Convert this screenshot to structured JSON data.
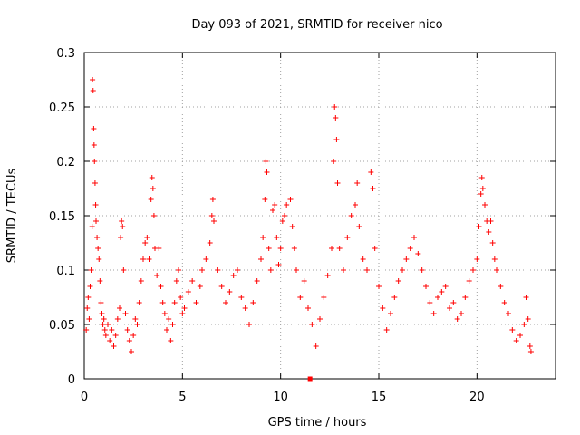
{
  "chart_data": {
    "type": "scatter",
    "title": "Day 093 of 2021, SRMTID for receiver nico",
    "xlabel": "GPS time / hours",
    "ylabel": "SRMTID / TECUs",
    "xlim": [
      0,
      24
    ],
    "ylim": [
      0,
      0.3
    ],
    "x_ticks": [
      0,
      5,
      10,
      15,
      20
    ],
    "y_ticks": [
      0,
      0.05,
      0.1,
      0.15,
      0.2,
      0.25,
      0.3
    ],
    "x_tick_labels": [
      "0",
      "5",
      "10",
      "15",
      "20"
    ],
    "y_tick_labels": [
      "0",
      "0.05",
      "0.1",
      "0.15",
      "0.2",
      "0.25",
      "0.3"
    ],
    "grid": true,
    "marker": "+",
    "color": "#ff0000",
    "series": [
      {
        "name": "SRMTID",
        "points": [
          [
            0.1,
            0.045
          ],
          [
            0.15,
            0.065
          ],
          [
            0.2,
            0.075
          ],
          [
            0.25,
            0.055
          ],
          [
            0.3,
            0.085
          ],
          [
            0.35,
            0.1
          ],
          [
            0.4,
            0.14
          ],
          [
            0.42,
            0.275
          ],
          [
            0.45,
            0.265
          ],
          [
            0.48,
            0.23
          ],
          [
            0.5,
            0.215
          ],
          [
            0.52,
            0.2
          ],
          [
            0.55,
            0.18
          ],
          [
            0.58,
            0.16
          ],
          [
            0.6,
            0.145
          ],
          [
            0.65,
            0.13
          ],
          [
            0.7,
            0.12
          ],
          [
            0.75,
            0.11
          ],
          [
            0.8,
            0.09
          ],
          [
            0.85,
            0.07
          ],
          [
            0.9,
            0.06
          ],
          [
            0.95,
            0.05
          ],
          [
            1.0,
            0.055
          ],
          [
            1.05,
            0.045
          ],
          [
            1.1,
            0.04
          ],
          [
            1.2,
            0.05
          ],
          [
            1.3,
            0.035
          ],
          [
            1.4,
            0.045
          ],
          [
            1.5,
            0.03
          ],
          [
            1.6,
            0.04
          ],
          [
            1.7,
            0.055
          ],
          [
            1.8,
            0.065
          ],
          [
            1.85,
            0.13
          ],
          [
            1.9,
            0.145
          ],
          [
            1.95,
            0.14
          ],
          [
            2.0,
            0.1
          ],
          [
            2.1,
            0.06
          ],
          [
            2.2,
            0.045
          ],
          [
            2.3,
            0.035
          ],
          [
            2.4,
            0.025
          ],
          [
            2.5,
            0.04
          ],
          [
            2.6,
            0.055
          ],
          [
            2.7,
            0.05
          ],
          [
            2.8,
            0.07
          ],
          [
            2.9,
            0.09
          ],
          [
            3.0,
            0.11
          ],
          [
            3.1,
            0.125
          ],
          [
            3.2,
            0.13
          ],
          [
            3.3,
            0.11
          ],
          [
            3.4,
            0.165
          ],
          [
            3.45,
            0.185
          ],
          [
            3.5,
            0.175
          ],
          [
            3.55,
            0.15
          ],
          [
            3.6,
            0.12
          ],
          [
            3.7,
            0.095
          ],
          [
            3.8,
            0.12
          ],
          [
            3.9,
            0.085
          ],
          [
            4.0,
            0.07
          ],
          [
            4.1,
            0.06
          ],
          [
            4.2,
            0.045
          ],
          [
            4.3,
            0.055
          ],
          [
            4.4,
            0.035
          ],
          [
            4.5,
            0.05
          ],
          [
            4.6,
            0.07
          ],
          [
            4.7,
            0.09
          ],
          [
            4.8,
            0.1
          ],
          [
            4.9,
            0.075
          ],
          [
            5.0,
            0.06
          ],
          [
            5.1,
            0.065
          ],
          [
            5.3,
            0.08
          ],
          [
            5.5,
            0.09
          ],
          [
            5.7,
            0.07
          ],
          [
            5.9,
            0.085
          ],
          [
            6.0,
            0.1
          ],
          [
            6.2,
            0.11
          ],
          [
            6.4,
            0.125
          ],
          [
            6.5,
            0.15
          ],
          [
            6.55,
            0.165
          ],
          [
            6.6,
            0.145
          ],
          [
            6.8,
            0.1
          ],
          [
            7.0,
            0.085
          ],
          [
            7.2,
            0.07
          ],
          [
            7.4,
            0.08
          ],
          [
            7.6,
            0.095
          ],
          [
            7.8,
            0.1
          ],
          [
            8.0,
            0.075
          ],
          [
            8.2,
            0.065
          ],
          [
            8.4,
            0.05
          ],
          [
            8.6,
            0.07
          ],
          [
            8.8,
            0.09
          ],
          [
            9.0,
            0.11
          ],
          [
            9.1,
            0.13
          ],
          [
            9.2,
            0.165
          ],
          [
            9.25,
            0.2
          ],
          [
            9.3,
            0.19
          ],
          [
            9.4,
            0.12
          ],
          [
            9.5,
            0.1
          ],
          [
            9.6,
            0.155
          ],
          [
            9.7,
            0.16
          ],
          [
            9.8,
            0.13
          ],
          [
            9.9,
            0.105
          ],
          [
            10.0,
            0.12
          ],
          [
            10.1,
            0.145
          ],
          [
            10.2,
            0.15
          ],
          [
            10.3,
            0.16
          ],
          [
            10.5,
            0.165
          ],
          [
            10.6,
            0.14
          ],
          [
            10.7,
            0.12
          ],
          [
            10.8,
            0.1
          ],
          [
            11.0,
            0.075
          ],
          [
            11.2,
            0.09
          ],
          [
            11.4,
            0.065
          ],
          [
            11.6,
            0.05
          ],
          [
            11.8,
            0.03
          ],
          [
            12.0,
            0.055
          ],
          [
            12.2,
            0.075
          ],
          [
            12.4,
            0.095
          ],
          [
            12.6,
            0.12
          ],
          [
            12.7,
            0.2
          ],
          [
            12.75,
            0.25
          ],
          [
            12.8,
            0.24
          ],
          [
            12.85,
            0.22
          ],
          [
            12.9,
            0.18
          ],
          [
            13.0,
            0.12
          ],
          [
            13.2,
            0.1
          ],
          [
            13.4,
            0.13
          ],
          [
            13.6,
            0.15
          ],
          [
            13.8,
            0.16
          ],
          [
            13.9,
            0.18
          ],
          [
            14.0,
            0.14
          ],
          [
            14.2,
            0.11
          ],
          [
            14.4,
            0.1
          ],
          [
            14.6,
            0.19
          ],
          [
            14.7,
            0.175
          ],
          [
            14.8,
            0.12
          ],
          [
            15.0,
            0.085
          ],
          [
            15.2,
            0.065
          ],
          [
            15.4,
            0.045
          ],
          [
            15.6,
            0.06
          ],
          [
            15.8,
            0.075
          ],
          [
            16.0,
            0.09
          ],
          [
            16.2,
            0.1
          ],
          [
            16.4,
            0.11
          ],
          [
            16.6,
            0.12
          ],
          [
            16.8,
            0.13
          ],
          [
            17.0,
            0.115
          ],
          [
            17.2,
            0.1
          ],
          [
            17.4,
            0.085
          ],
          [
            17.6,
            0.07
          ],
          [
            17.8,
            0.06
          ],
          [
            18.0,
            0.075
          ],
          [
            18.2,
            0.08
          ],
          [
            18.4,
            0.085
          ],
          [
            18.6,
            0.065
          ],
          [
            18.8,
            0.07
          ],
          [
            19.0,
            0.055
          ],
          [
            19.2,
            0.06
          ],
          [
            19.4,
            0.075
          ],
          [
            19.6,
            0.09
          ],
          [
            19.8,
            0.1
          ],
          [
            20.0,
            0.11
          ],
          [
            20.1,
            0.14
          ],
          [
            20.2,
            0.17
          ],
          [
            20.25,
            0.185
          ],
          [
            20.3,
            0.175
          ],
          [
            20.4,
            0.16
          ],
          [
            20.5,
            0.145
          ],
          [
            20.6,
            0.135
          ],
          [
            20.7,
            0.145
          ],
          [
            20.8,
            0.125
          ],
          [
            20.9,
            0.11
          ],
          [
            21.0,
            0.1
          ],
          [
            21.2,
            0.085
          ],
          [
            21.4,
            0.07
          ],
          [
            21.6,
            0.06
          ],
          [
            21.8,
            0.045
          ],
          [
            22.0,
            0.035
          ],
          [
            22.2,
            0.04
          ],
          [
            22.4,
            0.05
          ],
          [
            22.5,
            0.075
          ],
          [
            22.6,
            0.055
          ],
          [
            22.7,
            0.03
          ],
          [
            22.75,
            0.025
          ]
        ]
      }
    ],
    "annotations": [
      {
        "type": "square-marker",
        "x": 11.5,
        "y": 0.0
      }
    ]
  }
}
